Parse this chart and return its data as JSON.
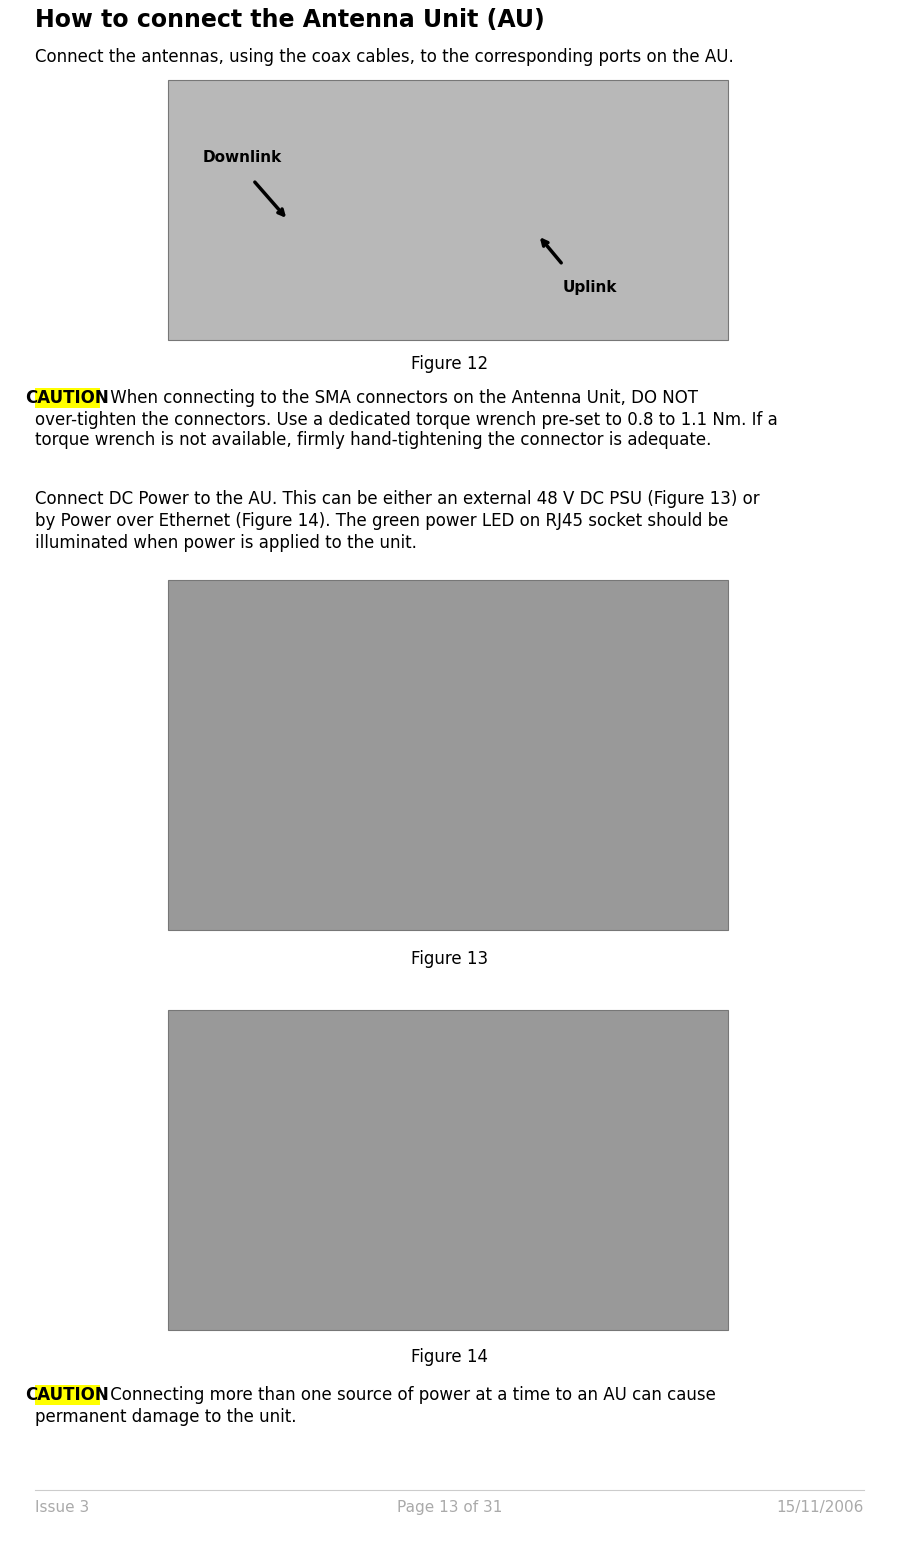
{
  "title": "How to connect the Antenna Unit (AU)",
  "para1": "Connect the antennas, using the coax cables, to the corresponding ports on the AU.",
  "fig12_caption": "Figure 12",
  "caution1_label": "CAUTION",
  "caution1_line1": " When connecting to the SMA connectors on the Antenna Unit, DO NOT",
  "caution1_line2": "over-tighten the connectors. Use a dedicated torque wrench pre-set to 0.8 to 1.1 Nm. If a",
  "caution1_line3": "torque wrench is not available, firmly hand-tightening the connector is adequate.",
  "para2_line1": "Connect DC Power to the AU. This can be either an external 48 V DC PSU (Figure 13) or",
  "para2_line2": "by Power over Ethernet (Figure 14). The green power LED on RJ45 socket should be",
  "para2_line3": "illuminated when power is applied to the unit.",
  "fig13_caption": "Figure 13",
  "fig14_caption": "Figure 14",
  "caution2_label": "CAUTION",
  "caution2_line1": " Connecting more than one source of power at a time to an AU can cause",
  "caution2_line2": "permanent damage to the unit.",
  "footer_left": "Issue 3",
  "footer_center": "Page 13 of 31",
  "footer_right": "15/11/2006",
  "bg_color": "#ffffff",
  "text_color": "#000000",
  "footer_color": "#aaaaaa",
  "caution_bg": "#ffff00",
  "title_fontsize": 17,
  "body_fontsize": 12,
  "caption_fontsize": 12,
  "footer_fontsize": 11,
  "page_width": 8.99,
  "page_height": 15.54
}
